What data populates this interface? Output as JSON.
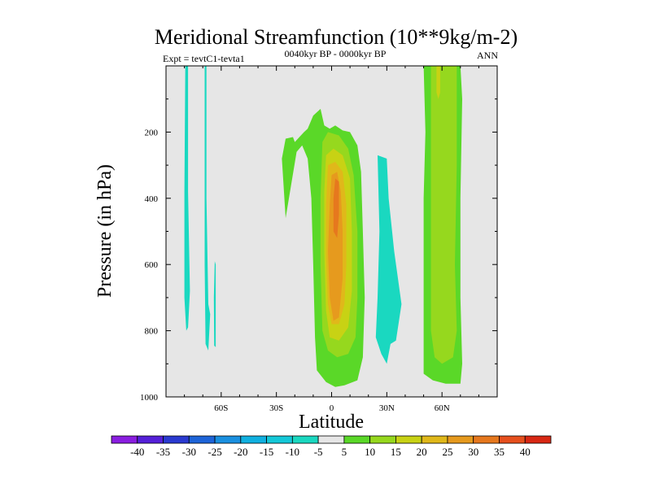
{
  "chart_data": {
    "type": "heatmap",
    "title": "Meridional Streamfunction (10**9kg/m-2)",
    "left_label": "Expt = tevtC1-tevta1",
    "center_label": "0040kyr BP - 0000kyr BP",
    "right_label": "ANN",
    "xlabel": "Latitude",
    "ylabel": "Pressure (in hPa)",
    "xlim": [
      -90,
      90
    ],
    "ylim": [
      1000,
      0
    ],
    "x_ticks": [
      -60,
      -30,
      0,
      30,
      60
    ],
    "x_tick_labels": [
      "60S",
      "30S",
      "0",
      "30N",
      "60N"
    ],
    "y_ticks": [
      200,
      400,
      600,
      800,
      1000
    ],
    "y_tick_labels": [
      "200",
      "400",
      "600",
      "800",
      "1000"
    ],
    "levels": [
      -40,
      -35,
      -30,
      -25,
      -20,
      -15,
      -10,
      -5,
      5,
      10,
      15,
      20,
      25,
      30,
      35,
      40
    ],
    "level_labels": [
      "-40",
      "-35",
      "-30",
      "-25",
      "-20",
      "-15",
      "-10",
      "-5",
      "5",
      "10",
      "15",
      "20",
      "25",
      "30",
      "35",
      "40"
    ],
    "colorbar_colors": [
      "#8a1ee0",
      "#5520d8",
      "#2a3ad0",
      "#1e64d8",
      "#1a90e0",
      "#10b0e0",
      "#14c8d8",
      "#1ad8c0",
      "#e6e6e6",
      "#5ad828",
      "#96d81e",
      "#c8d214",
      "#e0b81a",
      "#e69a1e",
      "#e6781e",
      "#e6501e",
      "#d82814"
    ],
    "background_color": "#e6e6e6",
    "features": [
      {
        "name": "negative-cell-sh-polar-a",
        "level": -5,
        "color": "#1ad8c0",
        "outline": [
          [
            -79,
            0
          ],
          [
            -78,
            0
          ],
          [
            -78,
            380
          ],
          [
            -77,
            680
          ],
          [
            -78,
            790
          ],
          [
            -79,
            800
          ],
          [
            -80,
            700
          ],
          [
            -80,
            380
          ],
          [
            -79.5,
            0
          ]
        ]
      },
      {
        "name": "negative-cell-sh-polar-b",
        "level": -5,
        "color": "#1ad8c0",
        "outline": [
          [
            -69,
            0
          ],
          [
            -68,
            0
          ],
          [
            -68,
            400
          ],
          [
            -67,
            720
          ],
          [
            -66,
            750
          ],
          [
            -67,
            860
          ],
          [
            -68.5,
            840
          ],
          [
            -69,
            600
          ],
          [
            -69,
            0
          ]
        ]
      },
      {
        "name": "negative-cell-sh-polar-c",
        "level": -5,
        "color": "#1ad8c0",
        "outline": [
          [
            -63.5,
            590
          ],
          [
            -63,
            600
          ],
          [
            -63,
            850
          ],
          [
            -63.8,
            845
          ],
          [
            -64,
            700
          ]
        ]
      },
      {
        "name": "negative-cell-nh-subtropics",
        "level": -5,
        "color": "#1ad8c0",
        "outline": [
          [
            25,
            270
          ],
          [
            30,
            280
          ],
          [
            31,
            400
          ],
          [
            34,
            560
          ],
          [
            38,
            720
          ],
          [
            35,
            830
          ],
          [
            32,
            840
          ],
          [
            30,
            900
          ],
          [
            27,
            870
          ],
          [
            24,
            820
          ],
          [
            25,
            700
          ],
          [
            26,
            500
          ],
          [
            25,
            270
          ]
        ]
      },
      {
        "name": "positive-cell-hadley-5",
        "level": 5,
        "color": "#5ad828",
        "outline": [
          [
            -20,
            230
          ],
          [
            -15,
            200
          ],
          [
            -13,
            190
          ],
          [
            -10,
            150
          ],
          [
            -6,
            130
          ],
          [
            -4,
            180
          ],
          [
            -1,
            190
          ],
          [
            2,
            180
          ],
          [
            6,
            195
          ],
          [
            10,
            200
          ],
          [
            14,
            240
          ],
          [
            16,
            320
          ],
          [
            17,
            500
          ],
          [
            18,
            700
          ],
          [
            17,
            880
          ],
          [
            14,
            950
          ],
          [
            7,
            965
          ],
          [
            2,
            970
          ],
          [
            -3,
            955
          ],
          [
            -8,
            920
          ],
          [
            -9,
            820
          ],
          [
            -10,
            600
          ],
          [
            -11,
            400
          ],
          [
            -13,
            280
          ],
          [
            -16,
            240
          ],
          [
            -19,
            260
          ],
          [
            -25,
            460
          ],
          [
            -27,
            280
          ],
          [
            -25,
            220
          ],
          [
            -21,
            215
          ],
          [
            -20,
            230
          ]
        ]
      },
      {
        "name": "positive-cell-hadley-10",
        "level": 10,
        "color": "#96d81e",
        "outline": [
          [
            -5,
            230
          ],
          [
            -2,
            200
          ],
          [
            4,
            210
          ],
          [
            9,
            250
          ],
          [
            12,
            330
          ],
          [
            14,
            500
          ],
          [
            14,
            700
          ],
          [
            13,
            820
          ],
          [
            9,
            870
          ],
          [
            3,
            880
          ],
          [
            -2,
            860
          ],
          [
            -5,
            800
          ],
          [
            -6,
            600
          ],
          [
            -6,
            400
          ],
          [
            -5,
            230
          ]
        ]
      },
      {
        "name": "positive-cell-hadley-15",
        "level": 15,
        "color": "#c8d214",
        "outline": [
          [
            -3,
            270
          ],
          [
            1,
            250
          ],
          [
            6,
            270
          ],
          [
            10,
            340
          ],
          [
            11,
            500
          ],
          [
            11,
            680
          ],
          [
            9,
            790
          ],
          [
            4,
            830
          ],
          [
            -1,
            820
          ],
          [
            -3,
            740
          ],
          [
            -4,
            560
          ],
          [
            -4,
            380
          ],
          [
            -3,
            270
          ]
        ]
      },
      {
        "name": "positive-cell-hadley-20",
        "level": 20,
        "color": "#e0b81a",
        "outline": [
          [
            -2,
            300
          ],
          [
            2,
            290
          ],
          [
            6,
            320
          ],
          [
            8,
            420
          ],
          [
            8,
            600
          ],
          [
            7,
            720
          ],
          [
            4,
            780
          ],
          [
            0,
            780
          ],
          [
            -2,
            720
          ],
          [
            -3,
            580
          ],
          [
            -3,
            420
          ],
          [
            -2,
            300
          ]
        ]
      },
      {
        "name": "positive-cell-hadley-25",
        "level": 25,
        "color": "#e69a1e",
        "outline": [
          [
            0,
            330
          ],
          [
            3,
            320
          ],
          [
            5,
            380
          ],
          [
            6,
            500
          ],
          [
            6,
            640
          ],
          [
            4,
            760
          ],
          [
            1,
            770
          ],
          [
            -1,
            700
          ],
          [
            -2,
            560
          ],
          [
            -1,
            420
          ],
          [
            0,
            330
          ]
        ]
      },
      {
        "name": "positive-cell-hadley-30",
        "level": 30,
        "color": "#e6781e",
        "outline": [
          [
            2,
            340
          ],
          [
            4,
            350
          ],
          [
            4,
            450
          ],
          [
            3,
            520
          ],
          [
            1,
            500
          ],
          [
            1,
            400
          ],
          [
            2,
            340
          ]
        ]
      },
      {
        "name": "positive-cell-nh-midlat-5",
        "level": 5,
        "color": "#5ad828",
        "outline": [
          [
            50,
            0
          ],
          [
            70,
            0
          ],
          [
            71,
            100
          ],
          [
            70,
            400
          ],
          [
            70,
            700
          ],
          [
            71,
            900
          ],
          [
            70,
            960
          ],
          [
            62,
            960
          ],
          [
            55,
            950
          ],
          [
            50,
            930
          ],
          [
            50,
            700
          ],
          [
            50,
            400
          ],
          [
            51,
            200
          ],
          [
            50,
            0
          ]
        ]
      },
      {
        "name": "positive-cell-nh-midlat-10",
        "level": 10,
        "color": "#96d81e",
        "outline": [
          [
            54,
            0
          ],
          [
            68,
            0
          ],
          [
            68,
            300
          ],
          [
            67,
            600
          ],
          [
            68,
            800
          ],
          [
            66,
            880
          ],
          [
            60,
            900
          ],
          [
            56,
            880
          ],
          [
            54,
            800
          ],
          [
            54,
            500
          ],
          [
            54,
            200
          ],
          [
            54,
            0
          ]
        ]
      },
      {
        "name": "positive-cell-nh-midlat-15",
        "level": 15,
        "color": "#c8d214",
        "outline": [
          [
            57,
            0
          ],
          [
            59,
            0
          ],
          [
            59,
            80
          ],
          [
            58,
            100
          ],
          [
            57,
            80
          ]
        ]
      }
    ]
  }
}
